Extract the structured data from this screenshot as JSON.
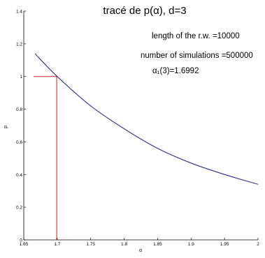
{
  "chart_data": {
    "type": "line",
    "title": "tracé de p(α), d=3",
    "xlabel": "α",
    "ylabel": "p",
    "xlim": [
      1.65,
      2
    ],
    "ylim": [
      0,
      1.4
    ],
    "xticks": [
      1.65,
      1.7,
      1.75,
      1.8,
      1.85,
      1.9,
      1.95,
      2
    ],
    "xtick_labels": [
      "1.65",
      "1.7",
      "1.75",
      "1.8",
      "1.85",
      "1.9",
      "1.95",
      "2"
    ],
    "yticks": [
      0,
      0.2,
      0.4,
      0.6,
      0.8,
      1,
      1.2,
      1.4
    ],
    "ytick_labels": [
      "0",
      "0.2",
      "0.4",
      "0.6",
      "0.8",
      "1",
      "1.2",
      "1.4"
    ],
    "grid": false,
    "series": [
      {
        "color": "#1a1a8c",
        "x": [
          1.6667,
          1.7,
          1.75,
          1.8,
          1.85,
          1.9,
          1.95,
          2.0
        ],
        "y": [
          1.14,
          1.0,
          0.82,
          0.68,
          0.56,
          0.47,
          0.4,
          0.34
        ]
      }
    ],
    "reference_lines": {
      "color": "#cc2222",
      "x": 1.6992,
      "y": 1.0
    },
    "annotations": [
      "length of the r.w. =10000",
      "number of simulations =500000",
      "α₁(3)=1.6992"
    ]
  }
}
